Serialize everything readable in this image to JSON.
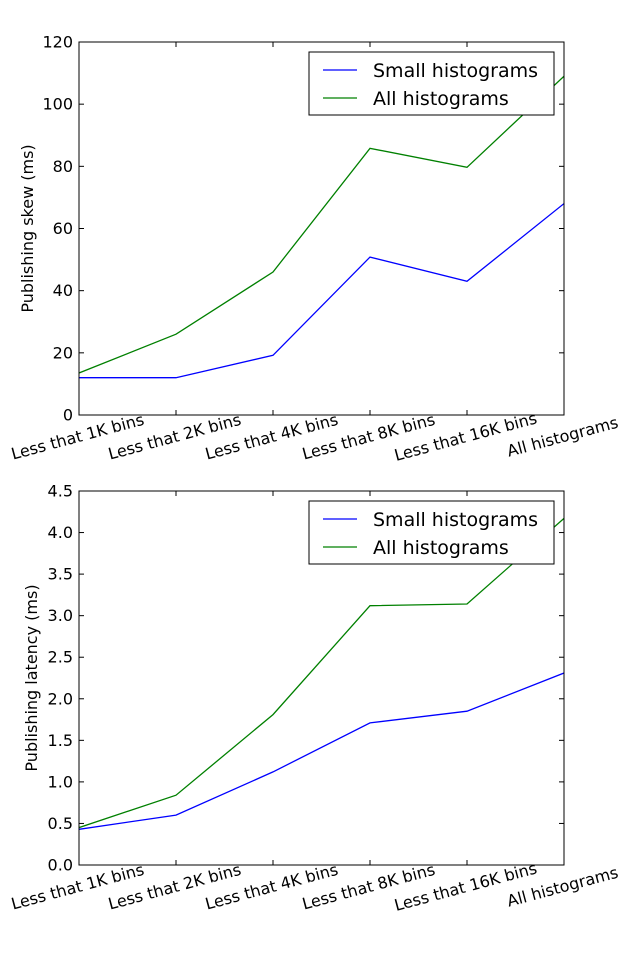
{
  "chart_data": [
    {
      "type": "line",
      "categories": [
        "Less that 1K bins",
        "Less that 2K bins",
        "Less that 4K bins",
        "Less that 8K bins",
        "Less that 16K bins",
        "All histograms"
      ],
      "series": [
        {
          "name": "Small histograms",
          "color": "#0000ff",
          "values": [
            12,
            12,
            19.2,
            50.8,
            43,
            68
          ]
        },
        {
          "name": "All histograms",
          "color": "#008000",
          "values": [
            13.5,
            26,
            46,
            85.8,
            79.7,
            109
          ]
        }
      ],
      "ylabel": "Publishing skew (ms)",
      "xlabel": "",
      "ylim": [
        0,
        120
      ],
      "yticks": [
        0,
        20,
        40,
        60,
        80,
        100,
        120
      ],
      "ytick_decimals": 0,
      "legend_position": "top-right",
      "grid": false
    },
    {
      "type": "line",
      "categories": [
        "Less that 1K bins",
        "Less that 2K bins",
        "Less that 4K bins",
        "Less that 8K bins",
        "Less that 16K bins",
        "All histograms"
      ],
      "series": [
        {
          "name": "Small histograms",
          "color": "#0000ff",
          "values": [
            0.43,
            0.6,
            1.12,
            1.71,
            1.85,
            2.31
          ]
        },
        {
          "name": "All histograms",
          "color": "#008000",
          "values": [
            0.45,
            0.84,
            1.81,
            3.12,
            3.14,
            4.17
          ]
        }
      ],
      "ylabel": "Publishing latency (ms)",
      "xlabel": "",
      "ylim": [
        0,
        4.5
      ],
      "yticks": [
        0,
        0.5,
        1,
        1.5,
        2,
        2.5,
        3,
        3.5,
        4,
        4.5
      ],
      "ytick_decimals": 1,
      "legend_position": "top-right",
      "grid": false
    }
  ]
}
